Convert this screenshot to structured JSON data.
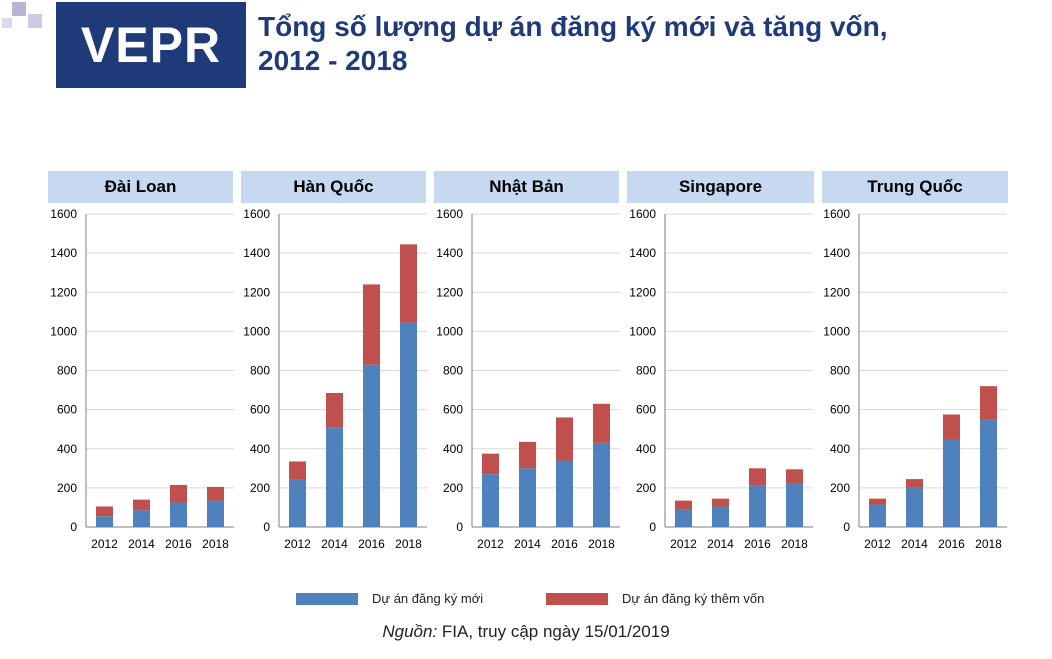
{
  "header": {
    "logo_text": "VEPR",
    "title_line1": "Tổng số lượng dự án đăng ký mới và tăng vốn,",
    "title_line2": "2012 - 2018"
  },
  "colors": {
    "new": "#4f81bd",
    "added": "#c0504d",
    "header_bg": "#c6d9f1",
    "title": "#1f3a78"
  },
  "legend": {
    "new_label": "Dự án đăng ký mới",
    "added_label": "Dự án đăng ký thêm vốn"
  },
  "source": {
    "label": "Nguồn:",
    "text": " FIA, truy cập ngày 15/01/2019"
  },
  "chart_data": [
    {
      "type": "bar",
      "title": "Đài Loan",
      "categories": [
        "2012",
        "2014",
        "2016",
        "2018"
      ],
      "series": [
        {
          "name": "Dự án đăng ký mới",
          "values": [
            55,
            85,
            125,
            135
          ]
        },
        {
          "name": "Dự án đăng ký thêm vốn",
          "values": [
            50,
            55,
            90,
            70
          ]
        }
      ],
      "ylim": [
        0,
        1600
      ],
      "yticks": [
        0,
        200,
        400,
        600,
        800,
        1000,
        1200,
        1400,
        1600
      ],
      "stacked": true
    },
    {
      "type": "bar",
      "title": "Hàn Quốc",
      "categories": [
        "2012",
        "2014",
        "2016",
        "2018"
      ],
      "series": [
        {
          "name": "Dự án đăng ký mới",
          "values": [
            245,
            510,
            830,
            1045
          ]
        },
        {
          "name": "Dự án đăng ký thêm vốn",
          "values": [
            90,
            175,
            410,
            400
          ]
        }
      ],
      "ylim": [
        0,
        1600
      ],
      "yticks": [
        0,
        200,
        400,
        600,
        800,
        1000,
        1200,
        1400,
        1600
      ],
      "stacked": true
    },
    {
      "type": "bar",
      "title": "Nhật Bản",
      "categories": [
        "2012",
        "2014",
        "2016",
        "2018"
      ],
      "series": [
        {
          "name": "Dự án đăng ký mới",
          "values": [
            270,
            300,
            340,
            430
          ]
        },
        {
          "name": "Dự án đăng ký thêm vốn",
          "values": [
            105,
            135,
            220,
            200
          ]
        }
      ],
      "ylim": [
        0,
        1600
      ],
      "yticks": [
        0,
        200,
        400,
        600,
        800,
        1000,
        1200,
        1400,
        1600
      ],
      "stacked": true
    },
    {
      "type": "bar",
      "title": "Singapore",
      "categories": [
        "2012",
        "2014",
        "2016",
        "2018"
      ],
      "series": [
        {
          "name": "Dự án đăng ký mới",
          "values": [
            90,
            105,
            210,
            225
          ]
        },
        {
          "name": "Dự án đăng ký thêm vốn",
          "values": [
            45,
            40,
            90,
            70
          ]
        }
      ],
      "ylim": [
        0,
        1600
      ],
      "yticks": [
        0,
        200,
        400,
        600,
        800,
        1000,
        1200,
        1400,
        1600
      ],
      "stacked": true
    },
    {
      "type": "bar",
      "title": "Trung Quốc",
      "categories": [
        "2012",
        "2014",
        "2016",
        "2018"
      ],
      "series": [
        {
          "name": "Dự án đăng ký mới",
          "values": [
            115,
            200,
            445,
            550
          ]
        },
        {
          "name": "Dự án đăng ký thêm vốn",
          "values": [
            30,
            45,
            130,
            170
          ]
        }
      ],
      "ylim": [
        0,
        1600
      ],
      "yticks": [
        0,
        200,
        400,
        600,
        800,
        1000,
        1200,
        1400,
        1600
      ],
      "stacked": true
    }
  ]
}
